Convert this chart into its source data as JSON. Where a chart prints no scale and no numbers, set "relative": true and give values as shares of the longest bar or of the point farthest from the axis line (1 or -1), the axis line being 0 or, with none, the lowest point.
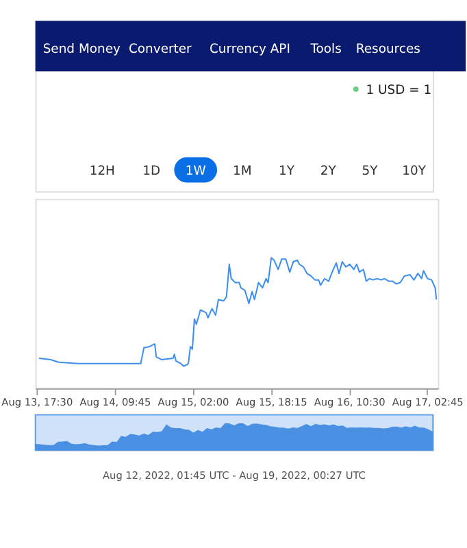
{
  "chart_data": [
    {
      "type": "line",
      "color": "#3d8fef",
      "relative": true,
      "marker": "none",
      "line_style": "solid",
      "annotations": [
        "Send Money",
        "Converter",
        "Currency API",
        "Tools",
        "Resources",
        "1 USD = 1",
        "12H",
        "1D",
        "1W",
        "1M",
        "1Y",
        "2Y",
        "5Y",
        "10Y"
      ],
      "xlim": [
        "2022-08-13T17:15",
        "2022-08-17T05:00"
      ],
      "xticks": [
        {
          "value": "2022-08-13T17:30",
          "label": "Aug 13, 17:30"
        },
        {
          "value": "2022-08-14T09:45",
          "label": "Aug 14, 09:45"
        },
        {
          "value": "2022-08-15T02:00",
          "label": "Aug 15, 02:00"
        },
        {
          "value": "2022-08-15T18:15",
          "label": "Aug 15, 18:15"
        },
        {
          "value": "2022-08-16T10:30",
          "label": "Aug 16, 10:30"
        },
        {
          "value": "2022-08-17T02:45",
          "label": "Aug 17, 02:45"
        }
      ],
      "x": [
        "2022-08-13T18:00",
        "2022-08-13T20:25",
        "2022-08-13T22:05",
        "2022-08-14T02:05",
        "2022-08-14T15:10",
        "2022-08-14T15:50",
        "2022-08-14T17:00",
        "2022-08-14T18:05",
        "2022-08-14T18:25",
        "2022-08-14T19:30",
        "2022-08-14T21:55",
        "2022-08-14T22:10",
        "2022-08-14T22:30",
        "2022-08-14T23:30",
        "2022-08-15T00:05",
        "2022-08-15T00:45",
        "2022-08-15T01:05",
        "2022-08-15T01:30",
        "2022-08-15T01:55",
        "2022-08-15T02:20",
        "2022-08-15T02:45",
        "2022-08-15T03:35",
        "2022-08-15T04:45",
        "2022-08-15T05:10",
        "2022-08-15T06:00",
        "2022-08-15T06:45",
        "2022-08-15T07:20",
        "2022-08-15T08:25",
        "2022-08-15T09:00",
        "2022-08-15T09:35",
        "2022-08-15T10:00",
        "2022-08-15T10:50",
        "2022-08-15T11:40",
        "2022-08-15T12:00",
        "2022-08-15T12:50",
        "2022-08-15T13:40",
        "2022-08-15T14:20",
        "2022-08-15T14:50",
        "2022-08-15T15:40",
        "2022-08-15T16:30",
        "2022-08-15T17:15",
        "2022-08-15T17:40",
        "2022-08-15T18:20",
        "2022-08-15T18:55",
        "2022-08-15T19:45",
        "2022-08-15T20:30",
        "2022-08-15T21:20",
        "2022-08-15T22:10",
        "2022-08-15T22:55",
        "2022-08-15T23:45",
        "2022-08-16T00:10",
        "2022-08-16T01:00",
        "2022-08-16T01:45",
        "2022-08-16T02:35",
        "2022-08-16T03:25",
        "2022-08-16T04:10",
        "2022-08-16T04:35",
        "2022-08-16T05:25",
        "2022-08-16T06:15",
        "2022-08-16T07:00",
        "2022-08-16T07:50",
        "2022-08-16T08:25",
        "2022-08-16T09:05",
        "2022-08-16T09:50",
        "2022-08-16T10:40",
        "2022-08-16T11:30",
        "2022-08-16T12:05",
        "2022-08-16T12:40",
        "2022-08-16T13:30",
        "2022-08-16T14:05",
        "2022-08-16T14:45",
        "2022-08-16T15:30",
        "2022-08-16T16:20",
        "2022-08-16T17:10",
        "2022-08-16T17:55",
        "2022-08-16T18:45",
        "2022-08-16T19:35",
        "2022-08-16T20:20",
        "2022-08-16T21:10",
        "2022-08-16T22:00",
        "2022-08-16T23:10",
        "2022-08-17T00:00",
        "2022-08-17T00:50",
        "2022-08-17T01:35",
        "2022-08-17T02:00",
        "2022-08-17T02:50",
        "2022-08-17T03:40",
        "2022-08-17T04:25",
        "2022-08-17T04:40"
      ],
      "values": [
        0.23,
        0.22,
        0.2,
        0.19,
        0.19,
        0.31,
        0.32,
        0.34,
        0.24,
        0.22,
        0.23,
        0.26,
        0.21,
        0.19,
        0.17,
        0.18,
        0.19,
        0.32,
        0.3,
        0.53,
        0.49,
        0.6,
        0.58,
        0.54,
        0.61,
        0.56,
        0.68,
        0.67,
        0.7,
        0.95,
        0.84,
        0.81,
        0.81,
        0.77,
        0.75,
        0.65,
        0.74,
        0.68,
        0.81,
        0.77,
        0.84,
        0.81,
        1.0,
        0.98,
        0.91,
        0.99,
        0.99,
        0.89,
        0.97,
        0.98,
        0.95,
        0.93,
        0.88,
        0.86,
        0.83,
        0.83,
        0.79,
        0.84,
        0.82,
        0.89,
        0.96,
        0.88,
        0.97,
        0.93,
        0.95,
        0.91,
        0.95,
        0.89,
        0.91,
        0.82,
        0.84,
        0.83,
        0.84,
        0.83,
        0.84,
        0.82,
        0.82,
        0.8,
        0.81,
        0.86,
        0.87,
        0.83,
        0.88,
        0.84,
        0.9,
        0.84,
        0.83,
        0.77,
        0.68
      ]
    },
    {
      "type": "area",
      "color": "#4a90e2",
      "relative": true,
      "tick_labels": false,
      "annotations": [
        "Aug 12, 2022, 01:45 UTC - Aug 19, 2022, 00:27 UTC"
      ],
      "categories": [
        null,
        null,
        null,
        null,
        null,
        null,
        null,
        null,
        null,
        null,
        null,
        null,
        null,
        null,
        null,
        null,
        null,
        null,
        null,
        null,
        null,
        null,
        null,
        null,
        null,
        null,
        null,
        null,
        null,
        null,
        null,
        null,
        null,
        null,
        null,
        null,
        null,
        null,
        null,
        null,
        null,
        null,
        null,
        null,
        null,
        null,
        null,
        null,
        null,
        null,
        null,
        null,
        null,
        null,
        null,
        null,
        null,
        null,
        null,
        null,
        null,
        null,
        null,
        null,
        null,
        null,
        null,
        null,
        null,
        null,
        null,
        null,
        null,
        null,
        null,
        null,
        null,
        null,
        null,
        null,
        null,
        null,
        null,
        null,
        null,
        null,
        null,
        null,
        null
      ],
      "values": [
        0.23,
        0.22,
        0.2,
        0.19,
        0.19,
        0.31,
        0.32,
        0.34,
        0.24,
        0.22,
        0.23,
        0.26,
        0.21,
        0.19,
        0.17,
        0.18,
        0.19,
        0.32,
        0.3,
        0.53,
        0.49,
        0.6,
        0.58,
        0.54,
        0.61,
        0.56,
        0.68,
        0.67,
        0.7,
        0.95,
        0.84,
        0.81,
        0.81,
        0.77,
        0.75,
        0.65,
        0.74,
        0.68,
        0.81,
        0.77,
        0.84,
        0.81,
        1.0,
        0.98,
        0.91,
        0.99,
        0.99,
        0.89,
        0.97,
        0.98,
        0.95,
        0.93,
        0.88,
        0.86,
        0.83,
        0.83,
        0.79,
        0.84,
        0.82,
        0.89,
        0.96,
        0.88,
        0.97,
        0.93,
        0.95,
        0.91,
        0.95,
        0.89,
        0.91,
        0.82,
        0.84,
        0.83,
        0.84,
        0.83,
        0.84,
        0.82,
        0.82,
        0.8,
        0.81,
        0.86,
        0.87,
        0.83,
        0.88,
        0.84,
        0.9,
        0.84,
        0.83,
        0.77,
        0.68
      ]
    }
  ]
}
